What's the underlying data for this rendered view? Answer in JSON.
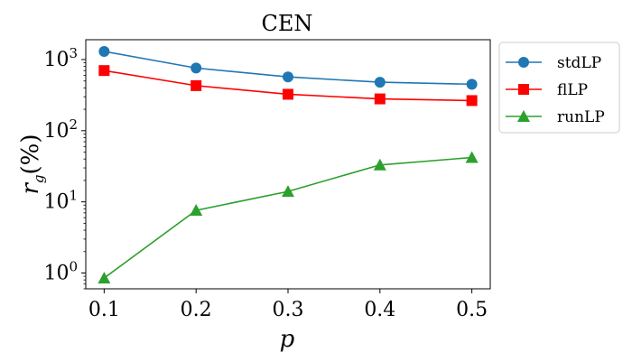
{
  "chart_data": {
    "type": "line",
    "title": "CEN",
    "xlabel": "p",
    "ylabel_main": "r",
    "ylabel_sub": "g",
    "ylabel_suffix": "(%)",
    "y_scale": "log",
    "xlim": [
      0.08,
      0.52
    ],
    "ylim": [
      0.6,
      1900
    ],
    "x": [
      0.1,
      0.2,
      0.3,
      0.4,
      0.5
    ],
    "x_tick_labels": [
      "0.1",
      "0.2",
      "0.3",
      "0.4",
      "0.5"
    ],
    "y_ticks": [
      {
        "value": 1,
        "base": "10",
        "exp": "0"
      },
      {
        "value": 10,
        "base": "10",
        "exp": "1"
      },
      {
        "value": 100,
        "base": "10",
        "exp": "2"
      },
      {
        "value": 1000,
        "base": "10",
        "exp": "3"
      }
    ],
    "legend_position": "outside-top-right",
    "series": [
      {
        "name": "stdLP",
        "color": "#1f77b4",
        "marker": "circle",
        "values": [
          1300,
          760,
          570,
          480,
          450
        ]
      },
      {
        "name": "flLP",
        "color": "#ff0000",
        "marker": "square",
        "values": [
          700,
          430,
          325,
          280,
          265
        ]
      },
      {
        "name": "runLP",
        "color": "#2ca02c",
        "marker": "triangle",
        "values": [
          0.85,
          7.6,
          14,
          33,
          42
        ]
      }
    ]
  }
}
